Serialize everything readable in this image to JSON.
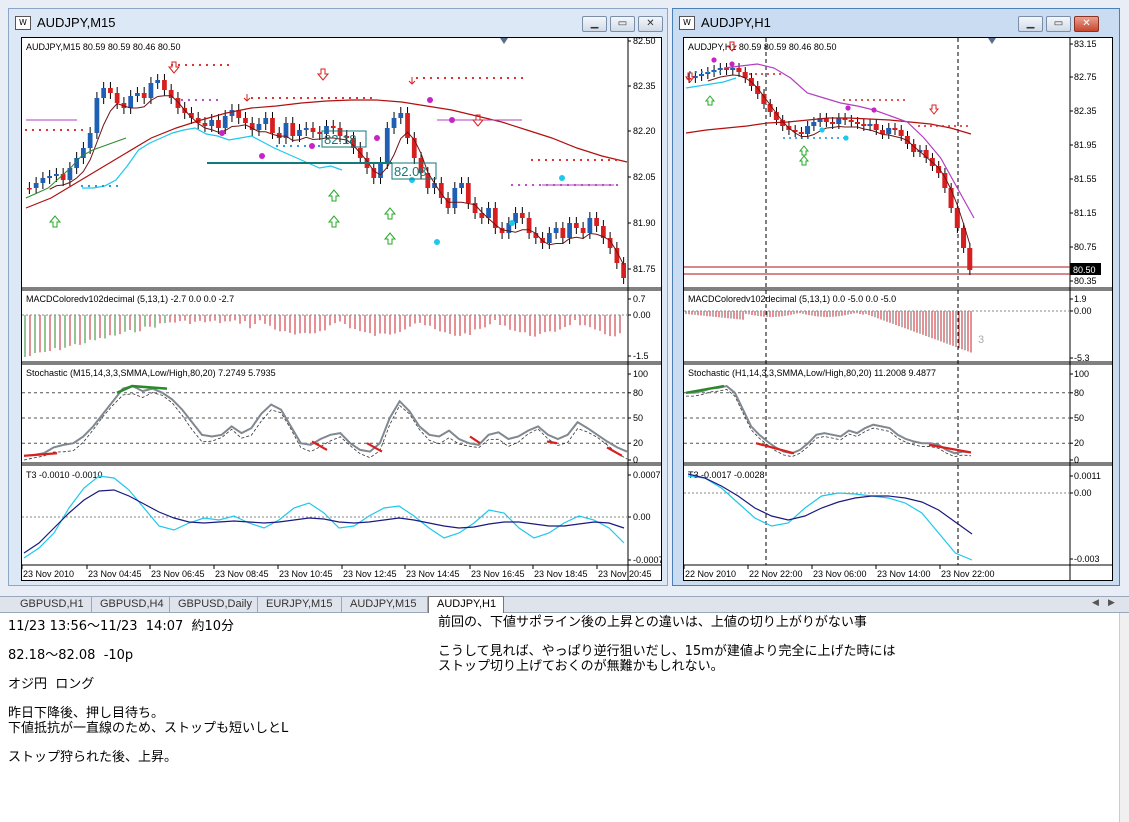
{
  "left_window": {
    "title": "AUDJPY,M15",
    "ohlc_label": "AUDJPY,M15  80.59 80.59 80.46 80.50",
    "price_ticks": [
      "82.50",
      "82.35",
      "82.20",
      "82.05",
      "81.90",
      "81.75"
    ],
    "level_labels": [
      "82.18",
      "82.08"
    ],
    "macd_label": "MACDColoredv102decimal (5,13,1) -2.7 0.0 0.0 -2.7",
    "macd_ticks": [
      "0.7",
      "0.00",
      "-1.5"
    ],
    "stoch_label": "Stochastic (M15,14,3,3,SMMA,Low/High,80,20) 7.2749 5.7935",
    "stoch_ticks": [
      "100",
      "80",
      "50",
      "20",
      "0"
    ],
    "t3_label": "T3 -0.0010 -0.0010",
    "t3_ticks": [
      "0.0007",
      "0.00",
      "-0.0007"
    ],
    "time_ticks": [
      "23 Nov 2010",
      "23 Nov 04:45",
      "23 Nov 06:45",
      "23 Nov 08:45",
      "23 Nov 10:45",
      "23 Nov 12:45",
      "23 Nov 14:45",
      "23 Nov 16:45",
      "23 Nov 18:45",
      "23 Nov 20:45"
    ]
  },
  "right_window": {
    "title": "AUDJPY,H1",
    "ohlc_label": "AUDJPY,H1  80.59 80.59 80.46 80.50",
    "price_ticks": [
      "83.15",
      "82.75",
      "82.35",
      "81.95",
      "81.55",
      "81.15",
      "80.75",
      "80.35"
    ],
    "current_price": "80.50",
    "macd_label": "MACDColoredv102decimal (5,13,1) 0.0 -5.0 0.0 -5.0",
    "macd_ticks": [
      "1.9",
      "0.00",
      "-5.3"
    ],
    "macd_annotation": "3",
    "stoch_label": "Stochastic (H1,14,3,3,SMMA,Low/High,80,20) 11.2008 9.4877",
    "stoch_ticks": [
      "100",
      "80",
      "50",
      "20",
      "0"
    ],
    "t3_label": "T3 -0.0017 -0.0028",
    "t3_ticks": [
      "0.0011",
      "0.00",
      "-0.003"
    ],
    "time_ticks": [
      "22 Nov 2010",
      "22 Nov 22:00",
      "23 Nov 06:00",
      "23 Nov 14:00",
      "23 Nov 22:00"
    ]
  },
  "tabs": [
    "GBPUSD,H1",
    "GBPUSD,H4",
    "GBPUSD,Daily",
    "EURJPY,M15",
    "AUDJPY,M15",
    "AUDJPY,H1"
  ],
  "active_tab": "AUDJPY,H1",
  "notes": {
    "left": [
      "11/23 13:56～11/23  14:07  約10分",
      "82.18～82.08  -10p",
      "オジ円  ロング",
      "昨日下降後、押し目待ち。",
      "下値抵抗が一直線のため、ストップも短いしとL",
      "ストップ狩られた後、上昇。"
    ],
    "right": [
      "前回の、下値サポライン後の上昇との違いは、上値の切り上がりがない事",
      "こうして見れば、やっぱり逆行狙いだし、15mが建値より完全に上げた時には",
      "ストップ切り上げておくのが無難かもしれない。"
    ]
  },
  "colors": {
    "bull": "#1f5fb4",
    "bear": "#d81f1f",
    "ma_long": "#b01010",
    "ma_short": "#8a1a1a",
    "band": "#1ec8ec",
    "macd_red": "#c8202a",
    "macd_green": "#2a8a2a",
    "stoch": "#808890",
    "t3_fast": "#1ec8ec",
    "t3_slow": "#1a1a80"
  }
}
